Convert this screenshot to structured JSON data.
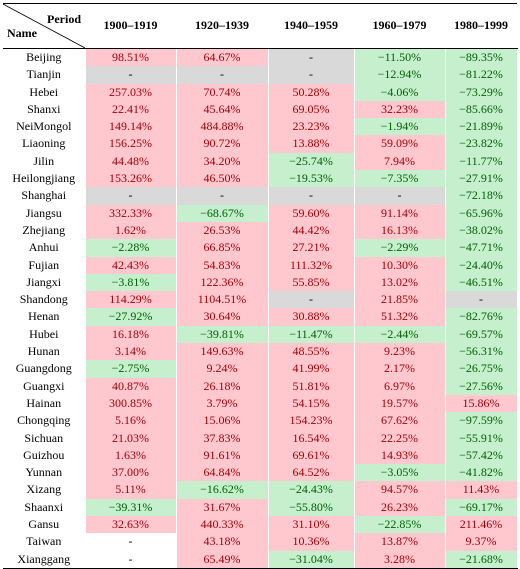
{
  "header": {
    "period_label": "Period",
    "name_label": "Name",
    "columns": [
      "1900–1919",
      "1920–1939",
      "1940–1959",
      "1960–1979",
      "1980–1999"
    ]
  },
  "colors": {
    "positive_bg": "#ffc7ce",
    "positive_text": "#9c0006",
    "negative_bg": "#c6efce",
    "negative_text": "#006100",
    "missing_bg": "#d9d9d9"
  },
  "rows": [
    {
      "name": "Beijing",
      "values": [
        "98.51%",
        "64.67%",
        "-",
        "−11.50%",
        "−89.35%"
      ]
    },
    {
      "name": "Tianjin",
      "values": [
        "-",
        "-",
        "-",
        "−12.94%",
        "−81.22%"
      ]
    },
    {
      "name": "Hebei",
      "values": [
        "257.03%",
        "70.74%",
        "50.28%",
        "−4.06%",
        "−73.29%"
      ]
    },
    {
      "name": "Shanxi",
      "values": [
        "22.41%",
        "45.64%",
        "69.05%",
        "32.23%",
        "−85.66%"
      ]
    },
    {
      "name": "NeiMongol",
      "values": [
        "149.14%",
        "484.88%",
        "23.23%",
        "−1.94%",
        "−21.89%"
      ]
    },
    {
      "name": "Liaoning",
      "values": [
        "156.25%",
        "90.72%",
        "13.88%",
        "59.09%",
        "−23.82%"
      ]
    },
    {
      "name": "Jilin",
      "values": [
        "44.48%",
        "34.20%",
        "−25.74%",
        "7.94%",
        "−11.77%"
      ]
    },
    {
      "name": "Heilongjiang",
      "values": [
        "153.26%",
        "46.50%",
        "−19.53%",
        "−7.35%",
        "−27.91%"
      ]
    },
    {
      "name": "Shanghai",
      "values": [
        "-",
        "-",
        "-",
        "-",
        "−72.18%"
      ]
    },
    {
      "name": "Jiangsu",
      "values": [
        "332.33%",
        "−68.67%",
        "59.60%",
        "91.14%",
        "−65.96%"
      ]
    },
    {
      "name": "Zhejiang",
      "values": [
        "1.62%",
        "26.53%",
        "44.42%",
        "16.13%",
        "−38.02%"
      ]
    },
    {
      "name": "Anhui",
      "values": [
        "−2.28%",
        "66.85%",
        "27.21%",
        "−2.29%",
        "−47.71%"
      ]
    },
    {
      "name": "Fujian",
      "values": [
        "42.43%",
        "54.83%",
        "111.32%",
        "10.30%",
        "−24.40%"
      ]
    },
    {
      "name": "Jiangxi",
      "values": [
        "−3.81%",
        "122.36%",
        "55.85%",
        "13.02%",
        "−46.51%"
      ]
    },
    {
      "name": "Shandong",
      "values": [
        "114.29%",
        "1104.51%",
        "-",
        "21.85%",
        "-"
      ]
    },
    {
      "name": "Henan",
      "values": [
        "−27.92%",
        "30.64%",
        "30.88%",
        "51.32%",
        "−82.76%"
      ]
    },
    {
      "name": "Hubei",
      "values": [
        "16.18%",
        "−39.81%",
        "−11.47%",
        "−2.44%",
        "−69.57%"
      ]
    },
    {
      "name": "Hunan",
      "values": [
        "3.14%",
        "149.63%",
        "48.55%",
        "9.23%",
        "−56.31%"
      ]
    },
    {
      "name": "Guangdong",
      "values": [
        "−2.75%",
        "9.24%",
        "41.99%",
        "2.17%",
        "−26.75%"
      ]
    },
    {
      "name": "Guangxi",
      "values": [
        "40.87%",
        "26.18%",
        "51.81%",
        "6.97%",
        "−27.56%"
      ]
    },
    {
      "name": "Hainan",
      "values": [
        "300.85%",
        "3.79%",
        "54.15%",
        "19.57%",
        "15.86%"
      ]
    },
    {
      "name": "Chongqing",
      "values": [
        "5.16%",
        "15.06%",
        "154.23%",
        "67.62%",
        "−97.59%"
      ]
    },
    {
      "name": "Sichuan",
      "values": [
        "21.03%",
        "37.83%",
        "16.54%",
        "22.25%",
        "−55.91%"
      ]
    },
    {
      "name": "Guizhou",
      "values": [
        "1.63%",
        "91.61%",
        "69.61%",
        "14.93%",
        "−57.42%"
      ]
    },
    {
      "name": "Yunnan",
      "values": [
        "37.00%",
        "64.84%",
        "64.52%",
        "−3.05%",
        "−41.82%"
      ]
    },
    {
      "name": "Xizang",
      "values": [
        "5.11%",
        "−16.62%",
        "−24.43%",
        "94.57%",
        "11.43%"
      ]
    },
    {
      "name": "Shaanxi",
      "values": [
        "−39.31%",
        "31.67%",
        "−55.80%",
        "26.23%",
        "−69.17%"
      ]
    },
    {
      "name": "Gansu",
      "values": [
        "32.63%",
        "440.33%",
        "31.10%",
        "−22.85%",
        "211.46%"
      ]
    },
    {
      "name": "Taiwan",
      "values": [
        "-",
        "43.18%",
        "10.36%",
        "13.87%",
        "9.37%"
      ]
    },
    {
      "name": "Xianggang",
      "values": [
        "-",
        "65.49%",
        "−31.04%",
        "3.28%",
        "−21.68%"
      ]
    }
  ],
  "missing_white_cells": [
    "Taiwan:0",
    "Xianggang:0"
  ]
}
